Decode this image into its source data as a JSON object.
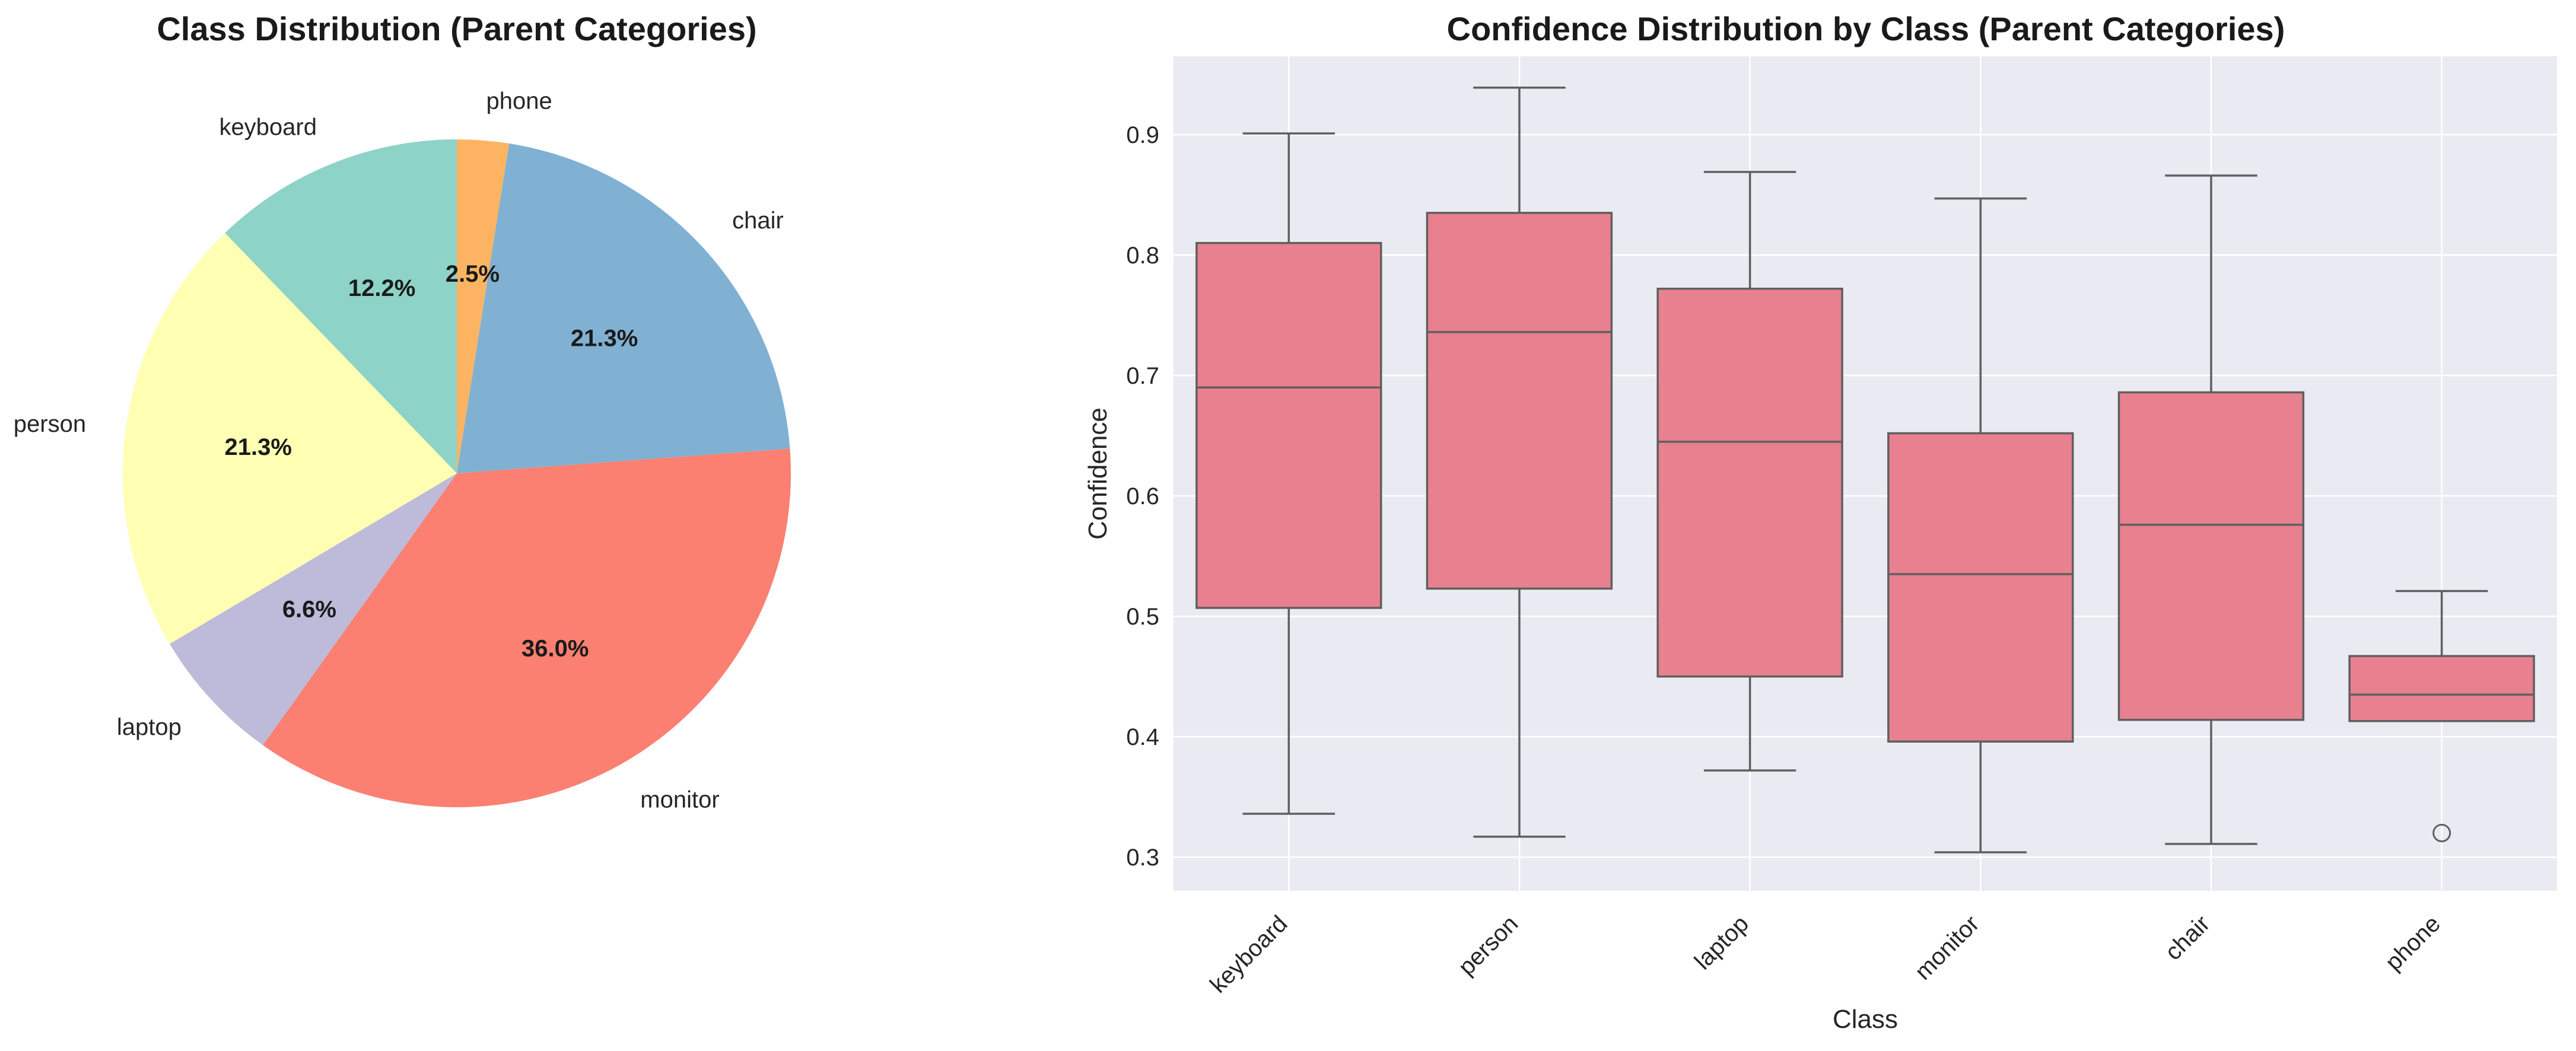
{
  "chart_data": [
    {
      "type": "pie",
      "title": "Class Distribution (Parent Categories)",
      "start_angle_deg": 90,
      "direction": "clockwise",
      "slices": [
        {
          "label": "phone",
          "value": 2.5,
          "pct_label": "2.5%",
          "color": "#fdb462"
        },
        {
          "label": "chair",
          "value": 21.3,
          "pct_label": "21.3%",
          "color": "#80b1d3"
        },
        {
          "label": "monitor",
          "value": 36.0,
          "pct_label": "36.0%",
          "color": "#fb8072"
        },
        {
          "label": "laptop",
          "value": 6.6,
          "pct_label": "6.6%",
          "color": "#bebada"
        },
        {
          "label": "person",
          "value": 21.3,
          "pct_label": "21.3%",
          "color": "#ffffb3"
        },
        {
          "label": "keyboard",
          "value": 12.2,
          "pct_label": "12.2%",
          "color": "#8dd3c7"
        }
      ]
    },
    {
      "type": "box",
      "title": "Confidence Distribution by Class (Parent Categories)",
      "xlabel": "Class",
      "ylabel": "Confidence",
      "ylim": [
        0.272,
        0.965
      ],
      "yticks": [
        0.3,
        0.4,
        0.5,
        0.6,
        0.7,
        0.8,
        0.9
      ],
      "grid": true,
      "box_color": "#e8808f",
      "categories": [
        "keyboard",
        "person",
        "laptop",
        "monitor",
        "chair",
        "phone"
      ],
      "boxes": [
        {
          "label": "keyboard",
          "whisker_low": 0.336,
          "q1": 0.507,
          "median": 0.69,
          "q3": 0.81,
          "whisker_high": 0.901,
          "outliers": []
        },
        {
          "label": "person",
          "whisker_low": 0.317,
          "q1": 0.523,
          "median": 0.736,
          "q3": 0.835,
          "whisker_high": 0.939,
          "outliers": []
        },
        {
          "label": "laptop",
          "whisker_low": 0.372,
          "q1": 0.45,
          "median": 0.645,
          "q3": 0.772,
          "whisker_high": 0.869,
          "outliers": []
        },
        {
          "label": "monitor",
          "whisker_low": 0.304,
          "q1": 0.396,
          "median": 0.535,
          "q3": 0.652,
          "whisker_high": 0.847,
          "outliers": []
        },
        {
          "label": "chair",
          "whisker_low": 0.311,
          "q1": 0.414,
          "median": 0.576,
          "q3": 0.686,
          "whisker_high": 0.866,
          "outliers": []
        },
        {
          "label": "phone",
          "whisker_low": 0.413,
          "q1": 0.413,
          "median": 0.435,
          "q3": 0.467,
          "whisker_high": 0.521,
          "outliers": [
            0.32
          ]
        }
      ]
    }
  ]
}
